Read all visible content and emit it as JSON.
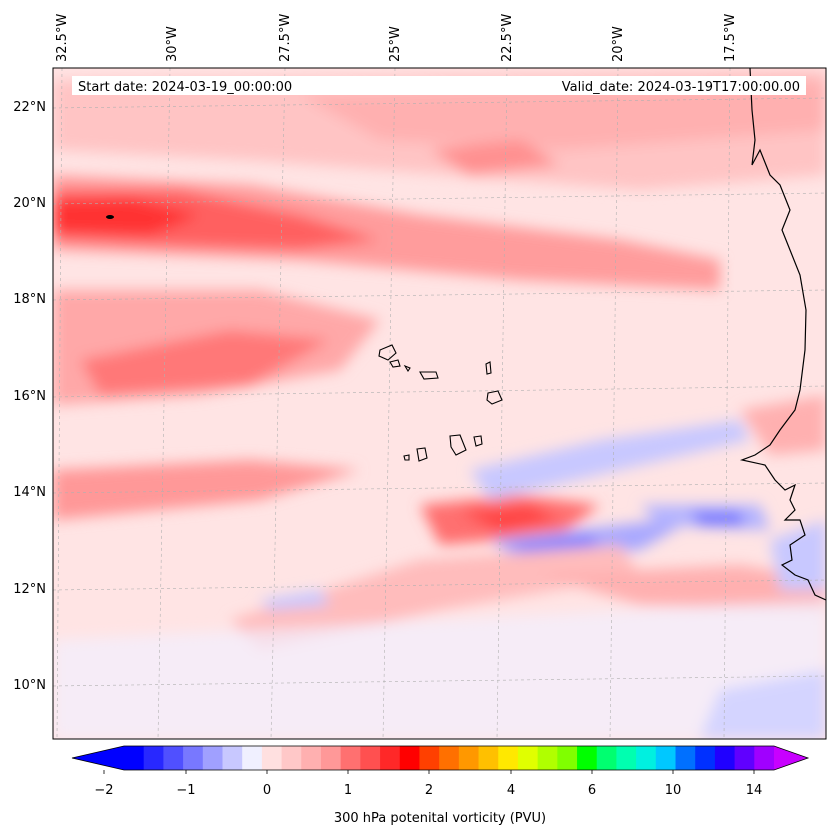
{
  "header": {
    "start_date": "Start date: 2024-03-19_00:00:00",
    "valid_date": "Valid_date: 2024-03-19T17:00:00.00"
  },
  "map": {
    "variable": "300 hPa potenital vorticity (PVU)",
    "lon_labels": [
      "32.5°W",
      "30°W",
      "27.5°W",
      "25°W",
      "22.5°W",
      "20°W",
      "17.5°W"
    ],
    "lat_labels": [
      "22°N",
      "20°N",
      "18°N",
      "16°N",
      "14°N",
      "12°N",
      "10°N"
    ],
    "gridlines": true
  },
  "colorbar": {
    "tick_labels": [
      "−2",
      "−1",
      "0",
      "1",
      "2",
      "4",
      "6",
      "10",
      "14"
    ],
    "colors": [
      "#0000ff",
      "#2828ff",
      "#5050ff",
      "#7878ff",
      "#a0a0ff",
      "#c8c8ff",
      "#f0f0ff",
      "#ffe0e0",
      "#ffc8c8",
      "#ffb0b0",
      "#ff9898",
      "#ff7070",
      "#ff5050",
      "#ff2828",
      "#ff0000",
      "#ff4000",
      "#ff7000",
      "#ff9800",
      "#ffc000",
      "#ffe800",
      "#e0ff00",
      "#b0ff00",
      "#80ff00",
      "#00ff00",
      "#00ff70",
      "#00ffb0",
      "#00f0e0",
      "#00c8ff",
      "#0070ff",
      "#0030ff",
      "#2000ff",
      "#6000ff",
      "#a000ff"
    ],
    "extend_low_color": "#0000ff",
    "extend_high_color": "#c800ff"
  }
}
